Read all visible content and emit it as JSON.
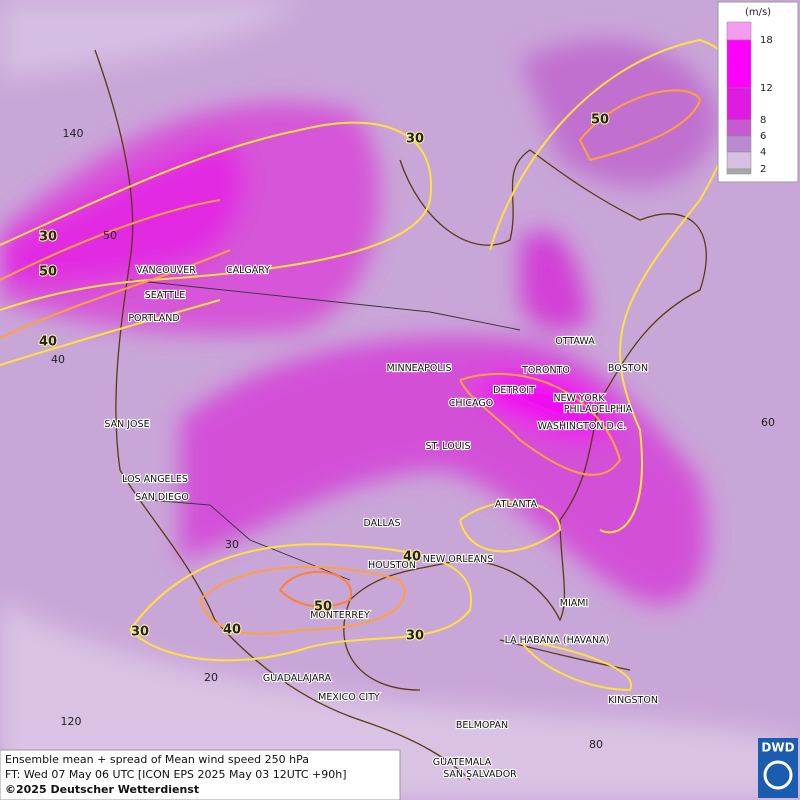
{
  "map": {
    "cities": [
      "VANCOUVER",
      "CALGARY",
      "SEATTLE",
      "PORTLAND",
      "MINNEAPOLIS",
      "OTTAWA",
      "TORONTO",
      "BOSTON",
      "DETROIT",
      "NEW YORK",
      "CHICAGO",
      "PHILADELPHIA",
      "SAN JOSE",
      "WASHINGTON D.C.",
      "ST. LOUIS",
      "LOS ANGELES",
      "SAN DIEGO",
      "ATLANTA",
      "DALLAS",
      "NEW ORLEANS",
      "HOUSTON",
      "MONTERREY",
      "MIAMI",
      "LA HABANA (HAVANA)",
      "GUADALAJARA",
      "MEXICO CITY",
      "KINGSTON",
      "BELMOPAN",
      "GUATEMALA",
      "SAN SALVADOR"
    ],
    "contour_labels": [
      "30",
      "50",
      "30",
      "50",
      "40",
      "40",
      "50",
      "30",
      "40",
      "30"
    ],
    "grid_labels": [
      "140",
      "50",
      "40",
      "30",
      "20",
      "60",
      "120",
      "80"
    ]
  },
  "legend": {
    "unit": "(m/s)",
    "levels": [
      18,
      12,
      8,
      6,
      4,
      2
    ],
    "colors": [
      "#f59cf0",
      "#ff00ff",
      "#e01ae0",
      "#c75ad0",
      "#b98ad0",
      "#d7c0e2",
      "#a8a8a8"
    ]
  },
  "footer": {
    "line1": "Ensemble mean + spread of Mean wind speed 250 hPa",
    "line2": "FT: Wed 07 May 06 UTC [ICON EPS 2025 May 03 12UTC +90h]",
    "copyright": "©2025 Deutscher Wetterdienst"
  },
  "logo": "DWD"
}
